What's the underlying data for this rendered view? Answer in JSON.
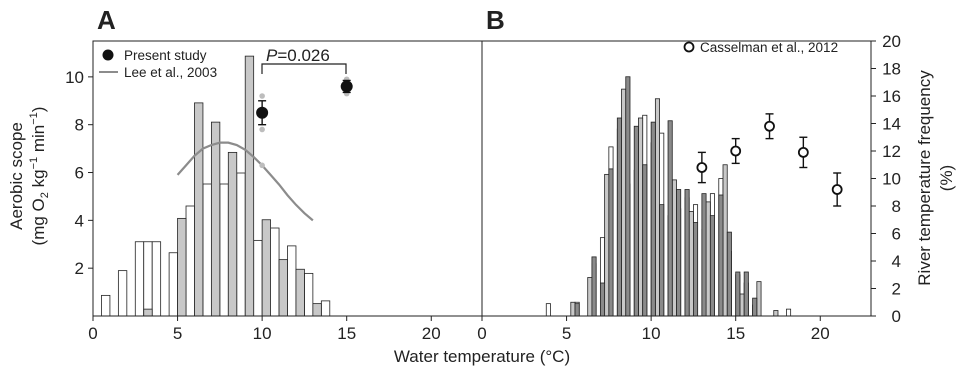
{
  "figure": {
    "panel_a_letter": "A",
    "panel_b_letter": "B",
    "x_axis_title": "Water temperature (°C)",
    "y_left_title_line1": "Aerobic scope",
    "y_left_title_line2": "(mg O",
    "y_left_title_sub": "2",
    "y_left_title_line2b": " kg",
    "y_left_title_sup1": "−1",
    "y_left_title_line2c": " min",
    "y_left_title_sup2": "−1",
    "y_left_title_line2d": ")",
    "y_right_title_line1": "River temperature frequency",
    "y_right_title_line2": "(%)",
    "p_value_italic": "P",
    "p_value_rest": "=0.026",
    "legend_a": [
      {
        "label": "Present study",
        "marker": "filled-circle"
      },
      {
        "label": "Lee et al., 2003",
        "marker": "gray-line"
      }
    ],
    "legend_b": [
      {
        "label": "Casselman et al., 2012",
        "marker": "open-circle"
      }
    ],
    "colors": {
      "bar_white": "#ffffff",
      "bar_gray": "#c8c8c8",
      "bar_dark": "#8a8a8a",
      "curve": "#8c8c8c",
      "points": "#111111",
      "replicates": "#bdbdbd"
    }
  },
  "chart_data": [
    {
      "panel": "A",
      "type": "bar",
      "xlabel": "Water temperature (°C)",
      "ylabel": "Aerobic scope (mg O2 kg−1 min−1)",
      "xlim": [
        0,
        23
      ],
      "ylim_left": [
        0,
        11.5
      ],
      "ylim_right": [
        0,
        20
      ],
      "x_ticks": [
        0,
        5,
        10,
        15,
        20
      ],
      "y_left_ticks": [
        2,
        4,
        6,
        8,
        10
      ],
      "y_right_ticks": [
        0,
        2,
        4,
        6,
        8,
        10,
        12,
        14,
        16,
        18,
        20
      ],
      "bin_width": 0.5,
      "histograms": [
        {
          "style": "white",
          "bins": [
            [
              0.5,
              1.5
            ],
            [
              1.5,
              3.3
            ],
            [
              2.5,
              5.4
            ],
            [
              3.0,
              5.4
            ],
            [
              3.5,
              5.4
            ],
            [
              4.5,
              4.6
            ],
            [
              5.5,
              8.0
            ],
            [
              6.5,
              9.6
            ],
            [
              7.5,
              9.6
            ],
            [
              8.5,
              10.4
            ],
            [
              9.5,
              5.5
            ],
            [
              10.5,
              6.4
            ],
            [
              11.5,
              5.1
            ],
            [
              12.5,
              3.1
            ],
            [
              13.5,
              1.1
            ]
          ]
        },
        {
          "style": "gray",
          "bins": [
            [
              3.0,
              0.5
            ],
            [
              5.0,
              7.1
            ],
            [
              6.0,
              15.5
            ],
            [
              7.0,
              14.1
            ],
            [
              8.0,
              11.9
            ],
            [
              9.0,
              18.9
            ],
            [
              10.0,
              7.0
            ],
            [
              11.0,
              4.1
            ],
            [
              12.0,
              3.4
            ],
            [
              13.0,
              0.9
            ]
          ]
        }
      ],
      "series": [
        {
          "name": "Present study",
          "type": "scatter",
          "points": [
            {
              "x": 10,
              "y": 8.5,
              "err": 0.5,
              "replicates": [
                9.2,
                7.8,
                6.3
              ]
            },
            {
              "x": 15,
              "y": 9.6,
              "err": 0.25,
              "replicates": [
                9.9,
                9.3,
                9.5
              ]
            }
          ]
        },
        {
          "name": "Lee et al., 2003",
          "type": "line",
          "x": [
            5,
            5.5,
            6,
            6.5,
            7,
            7.5,
            8,
            8.5,
            9,
            9.5,
            10,
            10.5,
            11,
            11.5,
            12,
            12.5,
            13
          ],
          "values": [
            5.9,
            6.3,
            6.7,
            7.0,
            7.15,
            7.25,
            7.25,
            7.15,
            6.95,
            6.65,
            6.3,
            5.9,
            5.5,
            5.05,
            4.65,
            4.3,
            4.0
          ]
        }
      ],
      "annotation": "P=0.026"
    },
    {
      "panel": "B",
      "type": "bar",
      "xlabel": "Water temperature (°C)",
      "ylabel": "River temperature frequency (%)",
      "xlim": [
        0,
        23
      ],
      "ylim": [
        0,
        20
      ],
      "x_ticks": [
        0,
        5,
        10,
        15,
        20
      ],
      "y_ticks": [
        0,
        2,
        4,
        6,
        8,
        10,
        12,
        14,
        16,
        18,
        20
      ],
      "bin_width": 0.25,
      "histograms": [
        {
          "style": "white",
          "bins": [
            [
              3.8,
              0.9
            ],
            [
              5.5,
              1.0
            ],
            [
              6.5,
              3.8
            ],
            [
              7.0,
              5.7
            ],
            [
              7.5,
              12.3
            ],
            [
              8.0,
              13.6
            ],
            [
              8.5,
              9.6
            ],
            [
              9.0,
              10.6
            ],
            [
              9.5,
              14.6
            ],
            [
              10.0,
              12.6
            ],
            [
              10.5,
              13.3
            ],
            [
              11.0,
              7.3
            ],
            [
              11.5,
              7.8
            ],
            [
              12.0,
              8.6
            ],
            [
              12.5,
              8.1
            ],
            [
              13.0,
              6.3
            ],
            [
              13.5,
              8.9
            ],
            [
              14.0,
              10.0
            ],
            [
              14.5,
              4.7
            ],
            [
              15.0,
              3.0
            ],
            [
              15.5,
              2.4
            ],
            [
              16.0,
              0.8
            ],
            [
              18.0,
              0.5
            ]
          ]
        },
        {
          "style": "gray",
          "bins": [
            [
              5.25,
              1.0
            ],
            [
              6.25,
              2.8
            ],
            [
              7.25,
              10.3
            ],
            [
              8.25,
              16.5
            ],
            [
              9.25,
              14.4
            ],
            [
              10.25,
              15.8
            ],
            [
              11.25,
              9.9
            ],
            [
              12.25,
              7.6
            ],
            [
              13.25,
              8.3
            ],
            [
              14.25,
              11.0
            ],
            [
              15.25,
              1.6
            ],
            [
              16.25,
              2.5
            ],
            [
              17.25,
              0.4
            ]
          ]
        },
        {
          "style": "dark",
          "bins": [
            [
              5.5,
              0.9
            ],
            [
              6.5,
              4.3
            ],
            [
              7.0,
              2.4
            ],
            [
              7.5,
              10.7
            ],
            [
              8.0,
              14.4
            ],
            [
              8.5,
              17.4
            ],
            [
              9.0,
              13.8
            ],
            [
              9.5,
              11.0
            ],
            [
              10.0,
              14.1
            ],
            [
              10.5,
              8.1
            ],
            [
              11.0,
              14.2
            ],
            [
              11.5,
              9.2
            ],
            [
              12.0,
              9.2
            ],
            [
              12.5,
              6.8
            ],
            [
              13.0,
              8.9
            ],
            [
              13.5,
              7.3
            ],
            [
              14.0,
              8.8
            ],
            [
              14.5,
              6.1
            ],
            [
              15.0,
              3.2
            ],
            [
              15.5,
              3.2
            ],
            [
              16.0,
              1.3
            ]
          ]
        }
      ],
      "series": [
        {
          "name": "Casselman et al., 2012",
          "type": "scatter",
          "points": [
            {
              "x": 13,
              "y": 10.8,
              "err": 1.1
            },
            {
              "x": 15,
              "y": 12.0,
              "err": 0.9
            },
            {
              "x": 17,
              "y": 13.8,
              "err": 0.9
            },
            {
              "x": 19,
              "y": 11.9,
              "err": 1.1
            },
            {
              "x": 21,
              "y": 9.2,
              "err": 1.2
            }
          ]
        }
      ]
    }
  ]
}
